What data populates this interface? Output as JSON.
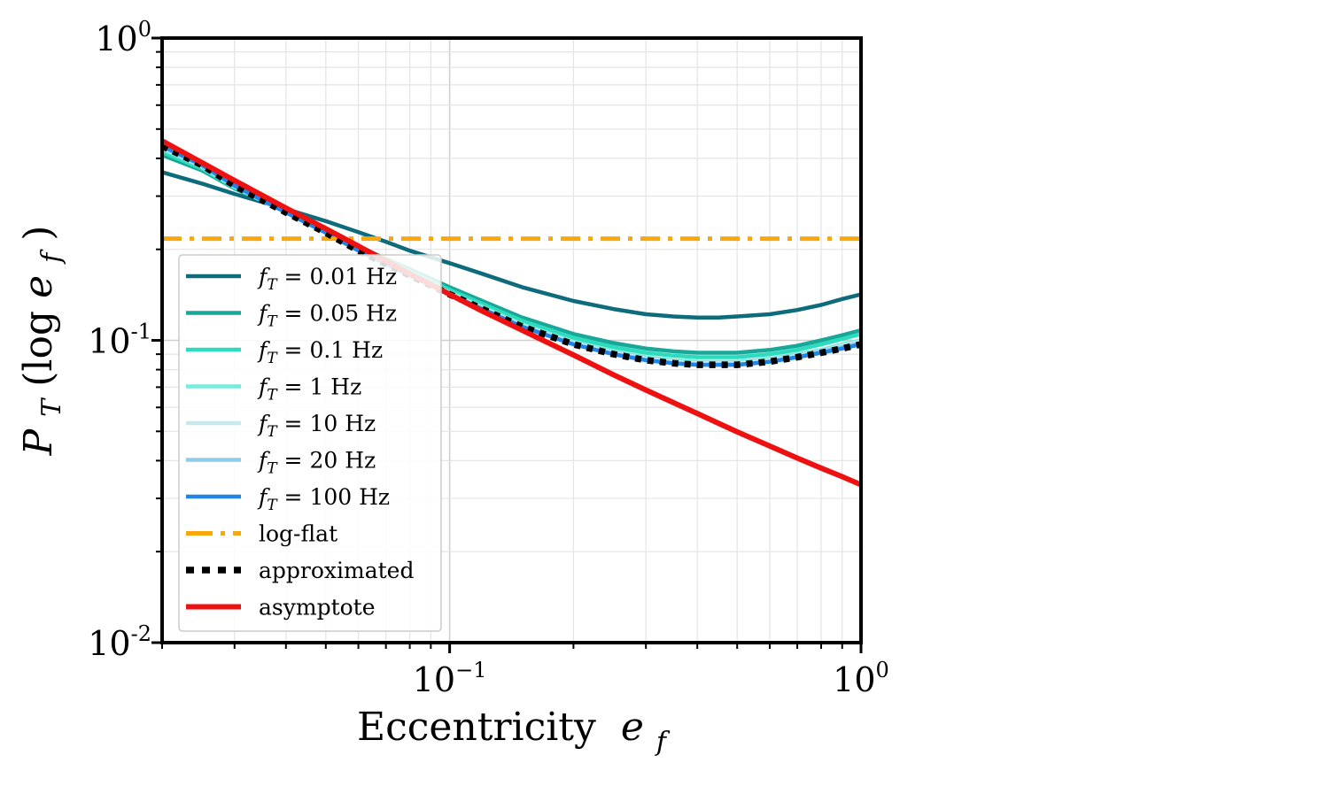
{
  "chart_data": {
    "type": "line",
    "title": "",
    "xlabel": {
      "text": "Eccentricity",
      "var": "e",
      "sub": "f"
    },
    "ylabel": {
      "P": "P",
      "T": "T",
      "open": "(log ",
      "e": "e",
      "f": "f",
      "close": ")"
    },
    "xscale": "log",
    "yscale": "log",
    "xlim": [
      0.02,
      1.0
    ],
    "ylim": [
      0.01,
      1.0
    ],
    "xticks": [
      {
        "value": 0.1,
        "base": "10",
        "exp": "−1"
      },
      {
        "value": 1.0,
        "base": "10",
        "exp": "0"
      }
    ],
    "yticks": [
      {
        "value": 0.01,
        "base": "10",
        "exp": "-2"
      },
      {
        "value": 0.1,
        "base": "10",
        "exp": "-1"
      },
      {
        "value": 1.0,
        "base": "10",
        "exp": "0"
      }
    ],
    "grid": true,
    "legend_position": "lower-left",
    "x": [
      0.02,
      0.025,
      0.03,
      0.04,
      0.05,
      0.06,
      0.07,
      0.08,
      0.1,
      0.12,
      0.15,
      0.2,
      0.25,
      0.3,
      0.35,
      0.4,
      0.45,
      0.5,
      0.6,
      0.7,
      0.8,
      0.9,
      1.0
    ],
    "series": [
      {
        "name": "f_T = 0.01 Hz",
        "label": {
          "f": "f",
          "T": "T",
          "rest": " = 0.01 Hz"
        },
        "color": "#0e6b7c",
        "width": 4.5,
        "dash": "",
        "values": [
          0.36,
          0.33,
          0.305,
          0.272,
          0.248,
          0.228,
          0.212,
          0.198,
          0.18,
          0.166,
          0.15,
          0.135,
          0.127,
          0.122,
          0.12,
          0.119,
          0.119,
          0.12,
          0.122,
          0.126,
          0.131,
          0.137,
          0.142
        ]
      },
      {
        "name": "f_T = 0.05 Hz",
        "label": {
          "f": "f",
          "T": "T",
          "rest": " = 0.05 Hz"
        },
        "color": "#17a89a",
        "width": 4.5,
        "dash": "",
        "values": [
          0.41,
          0.365,
          0.318,
          0.267,
          0.232,
          0.205,
          0.186,
          0.172,
          0.15,
          0.135,
          0.119,
          0.105,
          0.098,
          0.094,
          0.092,
          0.091,
          0.091,
          0.091,
          0.093,
          0.096,
          0.1,
          0.104,
          0.108
        ]
      },
      {
        "name": "f_T = 0.1 Hz",
        "label": {
          "f": "f",
          "T": "T",
          "rest": " = 0.1 Hz"
        },
        "color": "#2ddcbc",
        "width": 4.5,
        "dash": "",
        "values": [
          0.42,
          0.37,
          0.32,
          0.266,
          0.23,
          0.203,
          0.184,
          0.169,
          0.147,
          0.132,
          0.116,
          0.102,
          0.095,
          0.091,
          0.089,
          0.088,
          0.088,
          0.088,
          0.09,
          0.093,
          0.097,
          0.101,
          0.105
        ]
      },
      {
        "name": "f_T = 1 Hz",
        "label": {
          "f": "f",
          "T": "T",
          "rest": " = 1 Hz"
        },
        "color": "#7aeae0",
        "width": 4.5,
        "dash": "",
        "values": [
          0.43,
          0.375,
          0.322,
          0.265,
          0.228,
          0.2,
          0.181,
          0.166,
          0.144,
          0.129,
          0.113,
          0.099,
          0.092,
          0.088,
          0.086,
          0.085,
          0.085,
          0.085,
          0.087,
          0.09,
          0.093,
          0.097,
          0.1
        ]
      },
      {
        "name": "f_T = 10 Hz",
        "label": {
          "f": "f",
          "T": "T",
          "rest": " = 10 Hz"
        },
        "color": "#c6e9ec",
        "width": 4.5,
        "dash": "",
        "values": [
          0.435,
          0.378,
          0.324,
          0.265,
          0.227,
          0.199,
          0.18,
          0.165,
          0.143,
          0.128,
          0.112,
          0.098,
          0.091,
          0.087,
          0.085,
          0.084,
          0.084,
          0.084,
          0.086,
          0.089,
          0.092,
          0.096,
          0.099
        ]
      },
      {
        "name": "f_T = 20 Hz",
        "label": {
          "f": "f",
          "T": "T",
          "rest": " = 20 Hz"
        },
        "color": "#8ecdea",
        "width": 4.5,
        "dash": "",
        "values": [
          0.437,
          0.379,
          0.324,
          0.265,
          0.227,
          0.199,
          0.179,
          0.164,
          0.142,
          0.127,
          0.111,
          0.097,
          0.09,
          0.086,
          0.084,
          0.083,
          0.083,
          0.083,
          0.085,
          0.088,
          0.092,
          0.095,
          0.098
        ]
      },
      {
        "name": "f_T = 100 Hz",
        "label": {
          "f": "f",
          "T": "T",
          "rest": " = 100 Hz"
        },
        "color": "#2185e8",
        "width": 4.5,
        "dash": "",
        "values": [
          0.44,
          0.38,
          0.325,
          0.265,
          0.227,
          0.198,
          0.179,
          0.164,
          0.142,
          0.127,
          0.111,
          0.097,
          0.09,
          0.086,
          0.084,
          0.083,
          0.083,
          0.083,
          0.085,
          0.088,
          0.091,
          0.094,
          0.097
        ]
      },
      {
        "name": "log-flat",
        "label": {
          "text": "log-flat"
        },
        "color": "#f8a70c",
        "width": 5,
        "dash": "22,9,5,9",
        "values": [
          0.217,
          0.217,
          0.217,
          0.217,
          0.217,
          0.217,
          0.217,
          0.217,
          0.217,
          0.217,
          0.217,
          0.217,
          0.217,
          0.217,
          0.217,
          0.217,
          0.217,
          0.217,
          0.217,
          0.217,
          0.217,
          0.217,
          0.217
        ]
      },
      {
        "name": "approximated",
        "label": {
          "text": "approximated"
        },
        "color": "#000000",
        "width": 7.5,
        "dash": "7,7",
        "values": [
          0.44,
          0.38,
          0.325,
          0.265,
          0.227,
          0.198,
          0.179,
          0.164,
          0.142,
          0.127,
          0.111,
          0.097,
          0.09,
          0.086,
          0.084,
          0.083,
          0.083,
          0.083,
          0.085,
          0.088,
          0.091,
          0.094,
          0.097
        ]
      },
      {
        "name": "asymptote",
        "label": {
          "text": "asymptote"
        },
        "color": "#ee1111",
        "width": 6,
        "dash": "",
        "values": [
          0.457,
          0.387,
          0.338,
          0.274,
          0.234,
          0.205,
          0.183,
          0.166,
          0.142,
          0.125,
          0.108,
          0.0895,
          0.077,
          0.0685,
          0.0622,
          0.0573,
          0.0532,
          0.0498,
          0.0447,
          0.0408,
          0.0378,
          0.0354,
          0.0333
        ]
      }
    ]
  }
}
